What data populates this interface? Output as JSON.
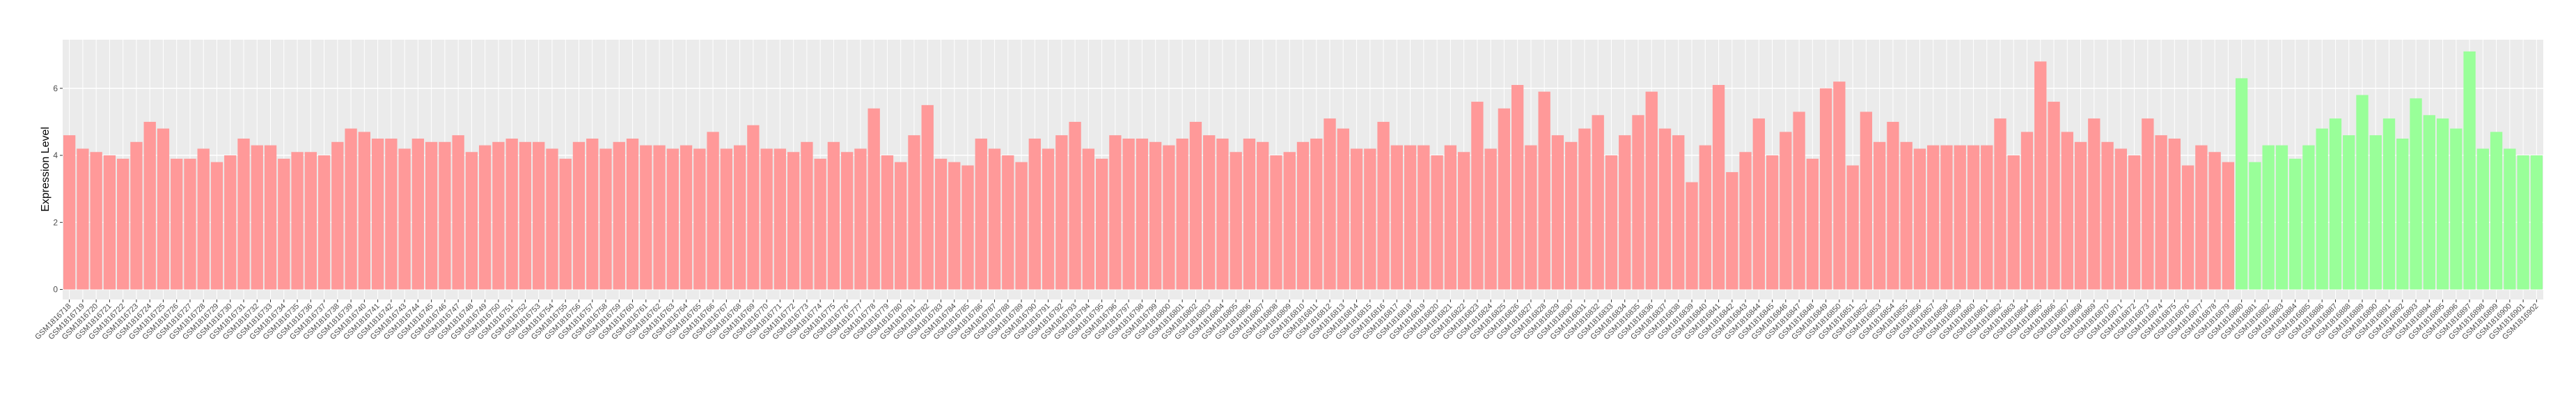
{
  "chart_data": {
    "type": "bar",
    "y_label": "Expression Level",
    "categories": [
      "GSM1816718",
      "GSM1816719",
      "GSM1816720",
      "GSM1816721",
      "GSM1816722",
      "GSM1816723",
      "GSM1816724",
      "GSM1816725",
      "GSM1816726",
      "GSM1816727",
      "GSM1816728",
      "GSM1816729",
      "GSM1816730",
      "GSM1816731",
      "GSM1816732",
      "GSM1816733",
      "GSM1816734",
      "GSM1816735",
      "GSM1816736",
      "GSM1816737",
      "GSM1816738",
      "GSM1816739",
      "GSM1816740",
      "GSM1816741",
      "GSM1816742",
      "GSM1816743",
      "GSM1816744",
      "GSM1816745",
      "GSM1816746",
      "GSM1816747",
      "GSM1816748",
      "GSM1816749",
      "GSM1816750",
      "GSM1816751",
      "GSM1816752",
      "GSM1816753",
      "GSM1816754",
      "GSM1816755",
      "GSM1816756",
      "GSM1816757",
      "GSM1816758",
      "GSM1816759",
      "GSM1816760",
      "GSM1816761",
      "GSM1816762",
      "GSM1816763",
      "GSM1816764",
      "GSM1816765",
      "GSM1816766",
      "GSM1816767",
      "GSM1816768",
      "GSM1816769",
      "GSM1816770",
      "GSM1816771",
      "GSM1816772",
      "GSM1816773",
      "GSM1816774",
      "GSM1816775",
      "GSM1816776",
      "GSM1816777",
      "GSM1816778",
      "GSM1816779",
      "GSM1816780",
      "GSM1816781",
      "GSM1816782",
      "GSM1816783",
      "GSM1816784",
      "GSM1816785",
      "GSM1816786",
      "GSM1816787",
      "GSM1816788",
      "GSM1816789",
      "GSM1816790",
      "GSM1816791",
      "GSM1816792",
      "GSM1816793",
      "GSM1816794",
      "GSM1816795",
      "GSM1816796",
      "GSM1816797",
      "GSM1816798",
      "GSM1816799",
      "GSM1816800",
      "GSM1816801",
      "GSM1816802",
      "GSM1816803",
      "GSM1816804",
      "GSM1816805",
      "GSM1816806",
      "GSM1816807",
      "GSM1816808",
      "GSM1816809",
      "GSM1816810",
      "GSM1816811",
      "GSM1816812",
      "GSM1816813",
      "GSM1816814",
      "GSM1816815",
      "GSM1816816",
      "GSM1816817",
      "GSM1816818",
      "GSM1816819",
      "GSM1816820",
      "GSM1816821",
      "GSM1816822",
      "GSM1816823",
      "GSM1816824",
      "GSM1816825",
      "GSM1816826",
      "GSM1816827",
      "GSM1816828",
      "GSM1816829",
      "GSM1816830",
      "GSM1816831",
      "GSM1816832",
      "GSM1816833",
      "GSM1816834",
      "GSM1816835",
      "GSM1816836",
      "GSM1816837",
      "GSM1816838",
      "GSM1816839",
      "GSM1816840",
      "GSM1816841",
      "GSM1816842",
      "GSM1816843",
      "GSM1816844",
      "GSM1816845",
      "GSM1816846",
      "GSM1816847",
      "GSM1816848",
      "GSM1816849",
      "GSM1816850",
      "GSM1816851",
      "GSM1816852",
      "GSM1816853",
      "GSM1816854",
      "GSM1816855",
      "GSM1816856",
      "GSM1816857",
      "GSM1816858",
      "GSM1816859",
      "GSM1816860",
      "GSM1816861",
      "GSM1816862",
      "GSM1816863",
      "GSM1816864",
      "GSM1816865",
      "GSM1816866",
      "GSM1816867",
      "GSM1816868",
      "GSM1816869",
      "GSM1816870",
      "GSM1816871",
      "GSM1816872",
      "GSM1816873",
      "GSM1816874",
      "GSM1816875",
      "GSM1816876",
      "GSM1816877",
      "GSM1816878",
      "GSM1816879",
      "GSM1816880",
      "GSM1816881",
      "GSM1816882",
      "GSM1816883",
      "GSM1816884",
      "GSM1816885",
      "GSM1816886",
      "GSM1816887",
      "GSM1816888",
      "GSM1816889",
      "GSM1816890",
      "GSM1816891",
      "GSM1816892",
      "GSM1816893",
      "GSM1816894",
      "GSM1816895",
      "GSM1816896",
      "GSM1816897",
      "GSM1816898",
      "GSM1816899",
      "GSM1816900",
      "GSM1816901",
      "GSM1816902"
    ],
    "values": [
      4.6,
      4.2,
      4.1,
      4.0,
      3.9,
      4.4,
      5.0,
      4.8,
      3.9,
      3.9,
      4.2,
      3.8,
      4.0,
      4.5,
      4.3,
      4.3,
      3.9,
      4.1,
      4.1,
      4.0,
      4.4,
      4.8,
      4.7,
      4.5,
      4.5,
      4.2,
      4.5,
      4.4,
      4.4,
      4.6,
      4.1,
      4.3,
      4.4,
      4.5,
      4.4,
      4.4,
      4.2,
      3.9,
      4.4,
      4.5,
      4.2,
      4.4,
      4.5,
      4.3,
      4.3,
      4.2,
      4.3,
      4.2,
      4.7,
      4.2,
      4.3,
      4.9,
      4.2,
      4.2,
      4.1,
      4.4,
      3.9,
      4.4,
      4.1,
      4.2,
      5.4,
      4.0,
      3.8,
      4.6,
      5.5,
      3.9,
      3.8,
      3.7,
      4.5,
      4.2,
      4.0,
      3.8,
      4.5,
      4.2,
      4.6,
      5.0,
      4.2,
      3.9,
      4.6,
      4.5,
      4.5,
      4.4,
      4.3,
      4.5,
      5.0,
      4.6,
      4.5,
      4.1,
      4.5,
      4.4,
      4.0,
      4.1,
      4.4,
      4.5,
      5.1,
      4.8,
      4.2,
      4.2,
      5.0,
      4.3,
      4.3,
      4.3,
      4.0,
      4.3,
      4.1,
      5.6,
      4.2,
      5.4,
      6.1,
      4.3,
      5.9,
      4.6,
      4.4,
      4.8,
      5.2,
      4.0,
      4.6,
      5.2,
      5.9,
      4.8,
      4.6,
      3.2,
      4.3,
      6.1,
      3.5,
      4.1,
      5.1,
      4.0,
      4.7,
      5.3,
      3.9,
      6.0,
      6.2,
      3.7,
      5.3,
      4.4,
      5.0,
      4.4,
      4.2,
      4.3,
      4.3,
      4.3,
      4.3,
      4.3,
      5.1,
      4.0,
      4.7,
      6.8,
      5.6,
      4.7,
      4.4,
      5.1,
      4.4,
      4.2,
      4.0,
      5.1,
      4.6,
      4.5,
      3.7,
      4.3,
      4.1,
      3.8,
      6.3,
      3.8,
      4.3,
      4.3,
      3.9,
      4.3,
      4.8,
      5.1,
      4.6,
      5.8,
      4.6,
      5.1,
      4.5,
      5.7,
      5.2,
      5.1,
      4.8,
      7.1,
      4.2,
      4.7,
      4.2,
      4.0,
      4.0
    ],
    "colors": [
      "#ff9999",
      "#ff9999",
      "#ff9999",
      "#ff9999",
      "#ff9999",
      "#ff9999",
      "#ff9999",
      "#ff9999",
      "#ff9999",
      "#ff9999",
      "#ff9999",
      "#ff9999",
      "#ff9999",
      "#ff9999",
      "#ff9999",
      "#ff9999",
      "#ff9999",
      "#ff9999",
      "#ff9999",
      "#ff9999",
      "#ff9999",
      "#ff9999",
      "#ff9999",
      "#ff9999",
      "#ff9999",
      "#ff9999",
      "#ff9999",
      "#ff9999",
      "#ff9999",
      "#ff9999",
      "#ff9999",
      "#ff9999",
      "#ff9999",
      "#ff9999",
      "#ff9999",
      "#ff9999",
      "#ff9999",
      "#ff9999",
      "#ff9999",
      "#ff9999",
      "#ff9999",
      "#ff9999",
      "#ff9999",
      "#ff9999",
      "#ff9999",
      "#ff9999",
      "#ff9999",
      "#ff9999",
      "#ff9999",
      "#ff9999",
      "#ff9999",
      "#ff9999",
      "#ff9999",
      "#ff9999",
      "#ff9999",
      "#ff9999",
      "#ff9999",
      "#ff9999",
      "#ff9999",
      "#ff9999",
      "#ff9999",
      "#ff9999",
      "#ff9999",
      "#ff9999",
      "#ff9999",
      "#ff9999",
      "#ff9999",
      "#ff9999",
      "#ff9999",
      "#ff9999",
      "#ff9999",
      "#ff9999",
      "#ff9999",
      "#ff9999",
      "#ff9999",
      "#ff9999",
      "#ff9999",
      "#ff9999",
      "#ff9999",
      "#ff9999",
      "#ff9999",
      "#ff9999",
      "#ff9999",
      "#ff9999",
      "#ff9999",
      "#ff9999",
      "#ff9999",
      "#ff9999",
      "#ff9999",
      "#ff9999",
      "#ff9999",
      "#ff9999",
      "#ff9999",
      "#ff9999",
      "#ff9999",
      "#ff9999",
      "#ff9999",
      "#ff9999",
      "#ff9999",
      "#ff9999",
      "#ff9999",
      "#ff9999",
      "#ff9999",
      "#ff9999",
      "#ff9999",
      "#ff9999",
      "#ff9999",
      "#ff9999",
      "#ff9999",
      "#ff9999",
      "#ff9999",
      "#ff9999",
      "#ff9999",
      "#ff9999",
      "#ff9999",
      "#ff9999",
      "#ff9999",
      "#ff9999",
      "#ff9999",
      "#ff9999",
      "#ff9999",
      "#ff9999",
      "#ff9999",
      "#ff9999",
      "#ff9999",
      "#ff9999",
      "#ff9999",
      "#ff9999",
      "#ff9999",
      "#ff9999",
      "#ff9999",
      "#ff9999",
      "#ff9999",
      "#ff9999",
      "#ff9999",
      "#ff9999",
      "#ff9999",
      "#ff9999",
      "#ff9999",
      "#ff9999",
      "#ff9999",
      "#ff9999",
      "#ff9999",
      "#ff9999",
      "#ff9999",
      "#ff9999",
      "#ff9999",
      "#ff9999",
      "#ff9999",
      "#ff9999",
      "#ff9999",
      "#ff9999",
      "#ff9999",
      "#ff9999",
      "#ff9999",
      "#ff9999",
      "#ff9999",
      "#ff9999",
      "#ff9999",
      "#ff9999",
      "#ff9999",
      "#ff9999",
      "#99ff99",
      "#99ff99",
      "#99ff99",
      "#99ff99",
      "#99ff99",
      "#99ff99",
      "#99ff99",
      "#99ff99",
      "#99ff99",
      "#99ff99",
      "#99ff99",
      "#99ff99",
      "#99ff99",
      "#99ff99",
      "#99ff99",
      "#99ff99",
      "#99ff99",
      "#99ff99",
      "#99ff99",
      "#99ff99",
      "#99ff99",
      "#99ff99",
      "#99ff99"
    ],
    "ylim": [
      -0.3,
      7.45
    ],
    "yticks": [
      0,
      2,
      4,
      6
    ],
    "grid": true
  }
}
